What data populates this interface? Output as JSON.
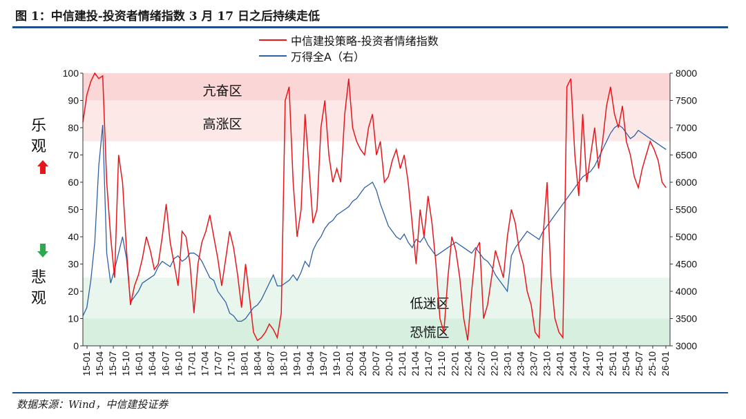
{
  "header": {
    "title": "图 1：中信建投-投资者情绪指数 3 月 17 日之后持续走低"
  },
  "footer": {
    "source": "数据来源：Wind，中信建投证券"
  },
  "side_labels": {
    "top": "乐观",
    "bottom": "悲观"
  },
  "colors": {
    "sentiment": "#e8151b",
    "wind": "#2d5fa5",
    "overheat": "#fbd6d6",
    "high": "#fde8e8",
    "low": "#e9f6ee",
    "panic": "#d6efdf",
    "rule": "#1e4f8c",
    "up_arrow": "#e8151b",
    "down_arrow": "#2fa84f"
  },
  "chart_data": {
    "type": "line",
    "title": "",
    "legend": [
      "中信建投策略-投资者情绪指数",
      "万得全A（右）"
    ],
    "legend_position": "top-center",
    "y_left": {
      "range": [
        0,
        100
      ],
      "ticks": [
        "0",
        "10",
        "20",
        "30",
        "40",
        "50",
        "60",
        "70",
        "80",
        "90",
        "100"
      ]
    },
    "y_right": {
      "range": [
        3000,
        8000
      ],
      "ticks": [
        "3000",
        "3500",
        "4000",
        "4500",
        "5000",
        "5500",
        "6000",
        "6500",
        "7000",
        "7500",
        "8000"
      ]
    },
    "x_ticks": [
      "15-01",
      "15-04",
      "15-07",
      "15-10",
      "16-01",
      "16-04",
      "16-07",
      "16-10",
      "17-01",
      "17-04",
      "17-07",
      "17-10",
      "18-01",
      "18-04",
      "18-07",
      "18-10",
      "19-01",
      "19-04",
      "19-07",
      "19-10",
      "20-01",
      "20-04",
      "20-07",
      "20-10",
      "21-01",
      "21-04",
      "21-07",
      "21-10",
      "22-01",
      "22-04",
      "22-07",
      "22-10",
      "23-01",
      "23-04",
      "23-07",
      "23-10",
      "24-01",
      "24-04",
      "24-07",
      "24-10",
      "25-01",
      "25-04",
      "25-07",
      "25-10",
      "26-01"
    ],
    "zones": [
      {
        "label": "亢奋区",
        "from": 90,
        "to": 100
      },
      {
        "label": "高涨区",
        "from": 75,
        "to": 90
      },
      {
        "label": "低迷区",
        "from": 10,
        "to": 25
      },
      {
        "label": "恐慌区",
        "from": 0,
        "to": 10
      }
    ],
    "series": [
      {
        "name": "中信建投策略-投资者情绪指数",
        "axis": "left",
        "months": [
          0,
          1,
          2,
          3,
          4,
          5,
          6,
          7,
          8,
          9,
          10,
          11,
          12,
          13,
          14,
          15,
          16,
          17,
          18,
          19,
          20,
          21,
          22,
          23,
          24,
          25,
          26,
          27,
          28,
          29,
          30,
          31,
          32,
          33,
          34,
          35,
          36,
          37,
          38,
          39,
          40,
          41,
          42,
          43,
          44,
          45,
          46,
          47,
          48,
          49,
          50,
          51,
          52,
          53,
          54,
          55,
          56,
          57,
          58,
          59,
          60,
          61,
          62,
          63,
          64,
          65,
          66,
          67,
          68,
          69,
          70,
          71,
          72,
          73,
          74,
          75,
          76,
          77,
          78,
          79,
          80,
          81,
          82,
          83,
          84,
          85,
          86,
          87,
          88,
          89,
          90,
          91,
          92,
          93,
          94,
          95,
          96,
          97,
          98,
          99,
          100,
          101,
          102,
          103,
          104,
          105,
          106,
          107,
          108,
          109,
          110,
          111,
          112,
          113,
          114,
          115,
          116,
          117,
          118,
          119,
          120,
          121,
          122,
          123,
          124,
          125,
          126,
          127,
          128,
          129,
          130,
          131,
          132,
          133,
          134,
          135,
          136,
          137,
          138,
          139,
          140,
          141,
          142,
          143,
          144,
          145,
          146,
          147
        ],
        "values": [
          82,
          92,
          97,
          100,
          98,
          99,
          60,
          40,
          25,
          70,
          60,
          35,
          15,
          22,
          26,
          32,
          40,
          35,
          28,
          30,
          40,
          52,
          38,
          30,
          22,
          42,
          40,
          30,
          12,
          30,
          38,
          42,
          48,
          40,
          32,
          22,
          32,
          42,
          36,
          26,
          14,
          30,
          18,
          5,
          2,
          3,
          5,
          8,
          6,
          3,
          12,
          90,
          95,
          60,
          40,
          50,
          85,
          65,
          45,
          50,
          80,
          90,
          70,
          60,
          65,
          60,
          85,
          98,
          80,
          75,
          72,
          70,
          80,
          85,
          70,
          75,
          60,
          62,
          68,
          72,
          65,
          70,
          60,
          45,
          30,
          50,
          40,
          55,
          45,
          30,
          10,
          5,
          25,
          40,
          35,
          25,
          10,
          2,
          20,
          35,
          38,
          10,
          15,
          25,
          35,
          30,
          25,
          40,
          50,
          45,
          35,
          30,
          20,
          15,
          5,
          3,
          40,
          60,
          25,
          10,
          5,
          3,
          95,
          98,
          70,
          55,
          85,
          60,
          70,
          80,
          65,
          75,
          88,
          95,
          85,
          80,
          88,
          75,
          70,
          62,
          58,
          65,
          70,
          75,
          72,
          68,
          60,
          58
        ]
      },
      {
        "name": "万得全A（右）",
        "axis": "right",
        "months": [
          0,
          1,
          2,
          3,
          4,
          5,
          6,
          7,
          8,
          9,
          10,
          11,
          12,
          13,
          14,
          15,
          16,
          17,
          18,
          19,
          20,
          21,
          22,
          23,
          24,
          25,
          26,
          27,
          28,
          29,
          30,
          31,
          32,
          33,
          34,
          35,
          36,
          37,
          38,
          39,
          40,
          41,
          42,
          43,
          44,
          45,
          46,
          47,
          48,
          49,
          50,
          51,
          52,
          53,
          54,
          55,
          56,
          57,
          58,
          59,
          60,
          61,
          62,
          63,
          64,
          65,
          66,
          67,
          68,
          69,
          70,
          71,
          72,
          73,
          74,
          75,
          76,
          77,
          78,
          79,
          80,
          81,
          82,
          83,
          84,
          85,
          86,
          87,
          88,
          89,
          90,
          91,
          92,
          93,
          94,
          95,
          96,
          97,
          98,
          99,
          100,
          101,
          102,
          103,
          104,
          105,
          106,
          107,
          108,
          109,
          110,
          111,
          112,
          113,
          114,
          115,
          116,
          117,
          118,
          119,
          120,
          121,
          122,
          123,
          124,
          125,
          126,
          127,
          128,
          129,
          130,
          131,
          132,
          133,
          134,
          135,
          136,
          137,
          138,
          139,
          140,
          141,
          142,
          143,
          144,
          145,
          146,
          147
        ],
        "values": [
          3550,
          3700,
          4200,
          4900,
          6300,
          7050,
          4700,
          4150,
          4400,
          4700,
          5000,
          4600,
          3800,
          3900,
          4000,
          4150,
          4200,
          4250,
          4300,
          4450,
          4550,
          4500,
          4450,
          4600,
          4650,
          4550,
          4600,
          4700,
          4700,
          4650,
          4550,
          4400,
          4250,
          4200,
          4000,
          3900,
          3800,
          3600,
          3550,
          3450,
          3450,
          3500,
          3600,
          3700,
          3750,
          3850,
          4000,
          4150,
          4300,
          4100,
          4100,
          4150,
          4200,
          4300,
          4200,
          4350,
          4550,
          4450,
          4750,
          4900,
          5000,
          5150,
          5250,
          5300,
          5400,
          5450,
          5500,
          5550,
          5650,
          5700,
          5800,
          5900,
          5950,
          6000,
          5850,
          5600,
          5400,
          5200,
          5100,
          5000,
          4950,
          5050,
          4900,
          4800,
          4950,
          4900,
          5000,
          4850,
          4750,
          4650,
          4700,
          4750,
          4800,
          4850,
          4900,
          4850,
          4800,
          4750,
          4700,
          4800,
          4700,
          4600,
          4550,
          4450,
          4300,
          4200,
          4100,
          4000,
          4650,
          4800,
          4900,
          5000,
          5100,
          5050,
          5000,
          4950,
          5100,
          5200,
          5300,
          5400,
          5500,
          5600,
          5700,
          5800,
          5900,
          6000,
          6100,
          6150,
          6200,
          6300,
          6450,
          6600,
          6750,
          6900,
          7000,
          7050,
          7000,
          6900,
          6800,
          6850,
          6950,
          6900,
          6850,
          6800,
          6750,
          6700,
          6650,
          6600
        ]
      }
    ]
  }
}
